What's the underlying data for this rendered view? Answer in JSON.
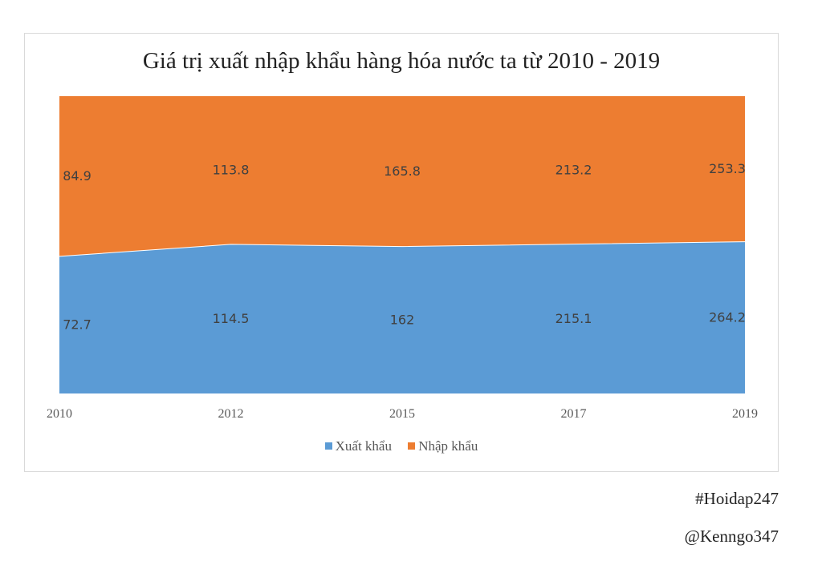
{
  "chart_data": {
    "type": "area",
    "title": "Giá trị xuất nhập khẩu hàng hóa nước ta từ 2010 - 2019",
    "categories": [
      "2010",
      "2012",
      "2015",
      "2017",
      "2019"
    ],
    "stacking": "percent",
    "series": [
      {
        "name": "Xuất khẩu",
        "values": [
          72.7,
          114.5,
          162,
          215.1,
          264.2
        ],
        "labels": [
          "72.7",
          "114.5",
          "162",
          "215.1",
          "264.2"
        ],
        "color": "#5b9bd5"
      },
      {
        "name": "Nhập khẩu",
        "values": [
          84.9,
          113.8,
          165.8,
          213.2,
          253.3
        ],
        "labels": [
          "84.9",
          "113.8",
          "165.8",
          "213.2",
          "253.3"
        ],
        "color": "#ed7d31"
      }
    ],
    "legend_position": "bottom",
    "grid": false
  },
  "watermarks": [
    "#Hoidap247",
    "@Kenngo347"
  ]
}
